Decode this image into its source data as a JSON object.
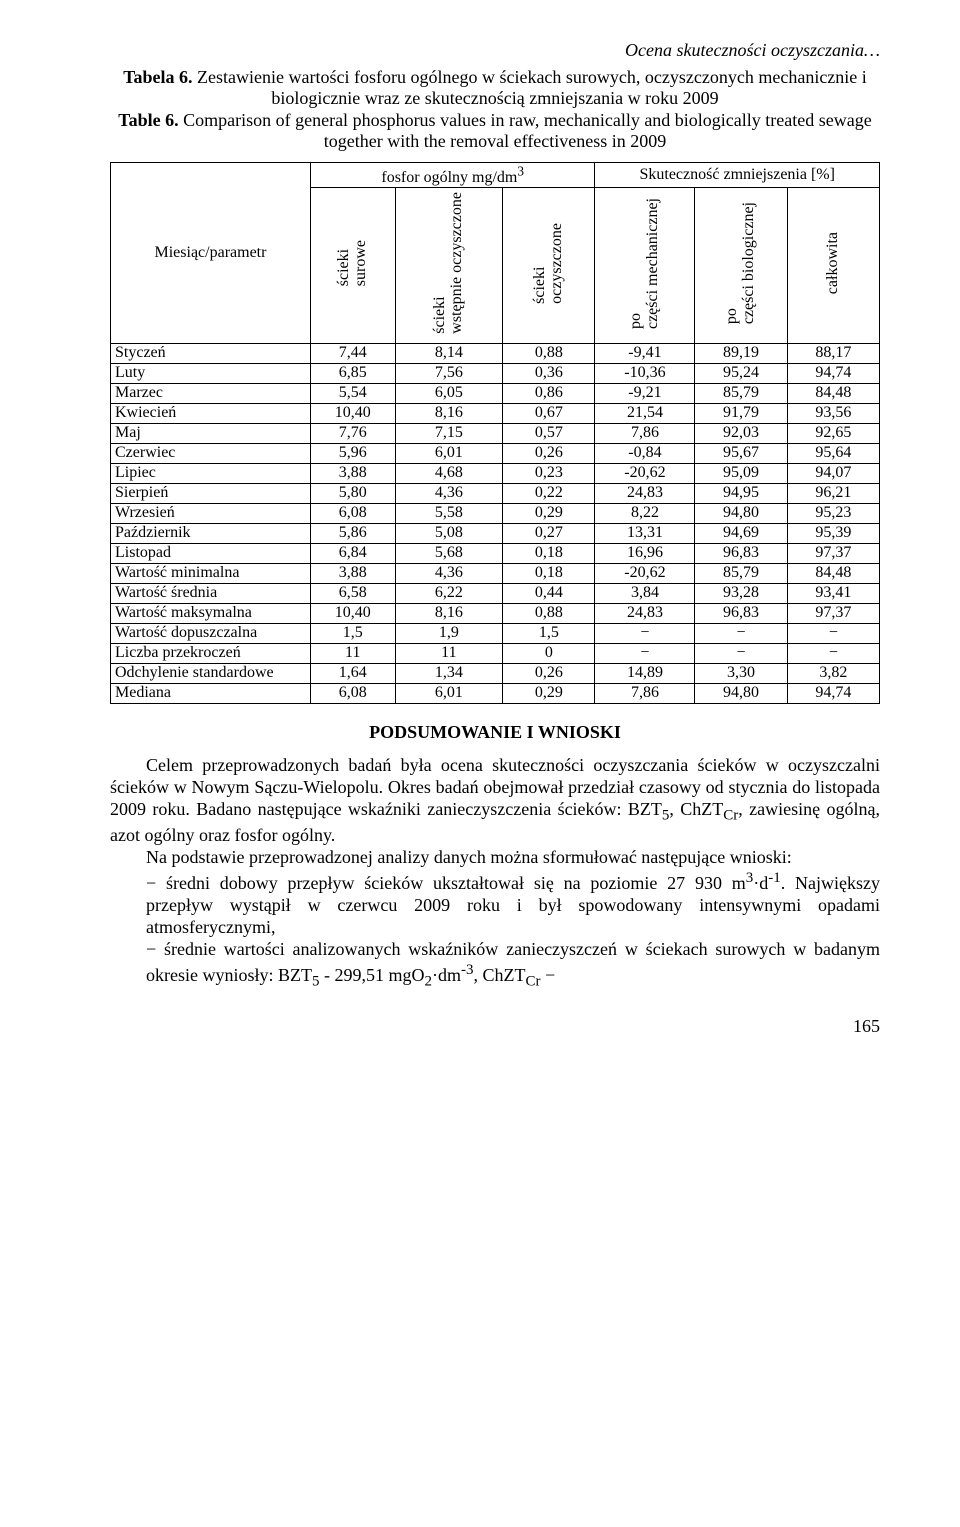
{
  "running_head": "Ocena skuteczności oczyszczania…",
  "caption": {
    "pl_label": "Tabela 6.",
    "pl_text": " Zestawienie wartości fosforu ogólnego w ściekach surowych, oczyszczonych mechanicznie i biologicznie wraz ze skutecznością zmniejszania w roku 2009",
    "en_label": "Table 6.",
    "en_text": " Comparison of general phosphorus values in raw, mechanically and biologically treated sewage together with the removal effectiveness in 2009"
  },
  "table": {
    "column_widths": [
      "26%",
      "11%",
      "14%",
      "12%",
      "13%",
      "12%",
      "12%"
    ],
    "group_headers": {
      "left": "fosfor ogólny mg/dm3",
      "right": "Skuteczność zmniejszenia [%]"
    },
    "row_header": "Miesiąc/parametr",
    "col_headers": [
      "ścieki surowe",
      "ścieki wstępnie oczyszczone",
      "ścieki oczyszczone",
      "po części mechanicznej",
      "po części biologicznej",
      "całkowita"
    ],
    "rows": [
      {
        "label": "Styczeń",
        "v": [
          "7,44",
          "8,14",
          "0,88",
          "-9,41",
          "89,19",
          "88,17"
        ]
      },
      {
        "label": "Luty",
        "v": [
          "6,85",
          "7,56",
          "0,36",
          "-10,36",
          "95,24",
          "94,74"
        ]
      },
      {
        "label": "Marzec",
        "v": [
          "5,54",
          "6,05",
          "0,86",
          "-9,21",
          "85,79",
          "84,48"
        ]
      },
      {
        "label": "Kwiecień",
        "v": [
          "10,40",
          "8,16",
          "0,67",
          "21,54",
          "91,79",
          "93,56"
        ]
      },
      {
        "label": "Maj",
        "v": [
          "7,76",
          "7,15",
          "0,57",
          "7,86",
          "92,03",
          "92,65"
        ]
      },
      {
        "label": "Czerwiec",
        "v": [
          "5,96",
          "6,01",
          "0,26",
          "-0,84",
          "95,67",
          "95,64"
        ]
      },
      {
        "label": "Lipiec",
        "v": [
          "3,88",
          "4,68",
          "0,23",
          "-20,62",
          "95,09",
          "94,07"
        ]
      },
      {
        "label": "Sierpień",
        "v": [
          "5,80",
          "4,36",
          "0,22",
          "24,83",
          "94,95",
          "96,21"
        ]
      },
      {
        "label": "Wrzesień",
        "v": [
          "6,08",
          "5,58",
          "0,29",
          "8,22",
          "94,80",
          "95,23"
        ]
      },
      {
        "label": "Październik",
        "v": [
          "5,86",
          "5,08",
          "0,27",
          "13,31",
          "94,69",
          "95,39"
        ]
      },
      {
        "label": "Listopad",
        "v": [
          "6,84",
          "5,68",
          "0,18",
          "16,96",
          "96,83",
          "97,37"
        ]
      },
      {
        "label": "Wartość minimalna",
        "v": [
          "3,88",
          "4,36",
          "0,18",
          "-20,62",
          "85,79",
          "84,48"
        ]
      },
      {
        "label": "Wartość średnia",
        "v": [
          "6,58",
          "6,22",
          "0,44",
          "3,84",
          "93,28",
          "93,41"
        ]
      },
      {
        "label": "Wartość maksymalna",
        "v": [
          "10,40",
          "8,16",
          "0,88",
          "24,83",
          "96,83",
          "97,37"
        ]
      },
      {
        "label": "Wartość dopuszczalna",
        "v": [
          "1,5",
          "1,9",
          "1,5",
          "−",
          "−",
          "−"
        ]
      },
      {
        "label": "Liczba przekroczeń",
        "v": [
          "11",
          "11",
          "0",
          "−",
          "−",
          "−"
        ]
      },
      {
        "label": "Odchylenie standardowe",
        "v": [
          "1,64",
          "1,34",
          "0,26",
          "14,89",
          "3,30",
          "3,82"
        ]
      },
      {
        "label": "Mediana",
        "v": [
          "6,08",
          "6,01",
          "0,29",
          "7,86",
          "94,80",
          "94,74"
        ]
      }
    ]
  },
  "section_heading": "PODSUMOWANIE I WNIOSKI",
  "para1": "Celem przeprowadzonych badań była ocena skuteczności oczyszczania ścieków w oczyszczalni ścieków w Nowym Sączu-Wielopolu. Okres badań obejmował przedział czasowy od stycznia do listopada 2009 roku. Badano następujące wskaźniki zanieczyszczenia ścieków: BZT5, ChZTCr, zawiesinę ogólną, azot ogólny oraz fosfor ogólny.",
  "para2": "Na podstawie przeprowadzonej analizy danych można sformułować następujące wnioski:",
  "bullet1": "średni dobowy przepływ ścieków ukształtował się na poziomie 27 930 m3·d-1. Największy przepływ wystąpił w czerwcu 2009 roku i był spowodowany intensywnymi opadami atmosferycznymi,",
  "bullet2": "średnie wartości analizowanych wskaźników zanieczyszczeń w ściekach surowych w badanym okresie wyniosły: BZT5 - 299,51 mgO2·dm-3, ChZTCr −",
  "page_number": "165"
}
